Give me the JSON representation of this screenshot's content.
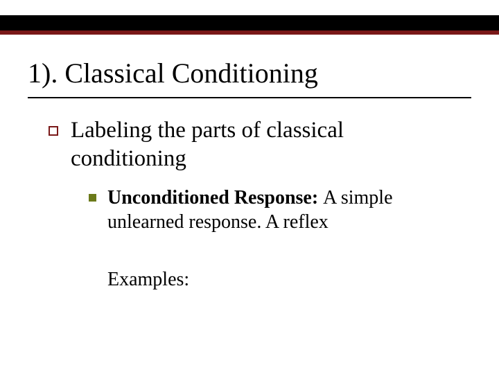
{
  "colors": {
    "bar_dark": "#000000",
    "bar_accent": "#7a1818",
    "bullet_outline": "#7a1818",
    "bullet_filled": "#6b7a1a",
    "text": "#000000",
    "background": "#ffffff"
  },
  "title": "1).  Classical Conditioning",
  "level1_text": "Labeling the parts of classical conditioning",
  "level2_bold": "Unconditioned Response:  ",
  "level2_rest": "A simple unlearned response.  A reflex",
  "examples_label": "Examples:",
  "fontsizes": {
    "title": 40,
    "level1": 33,
    "level2": 28
  }
}
